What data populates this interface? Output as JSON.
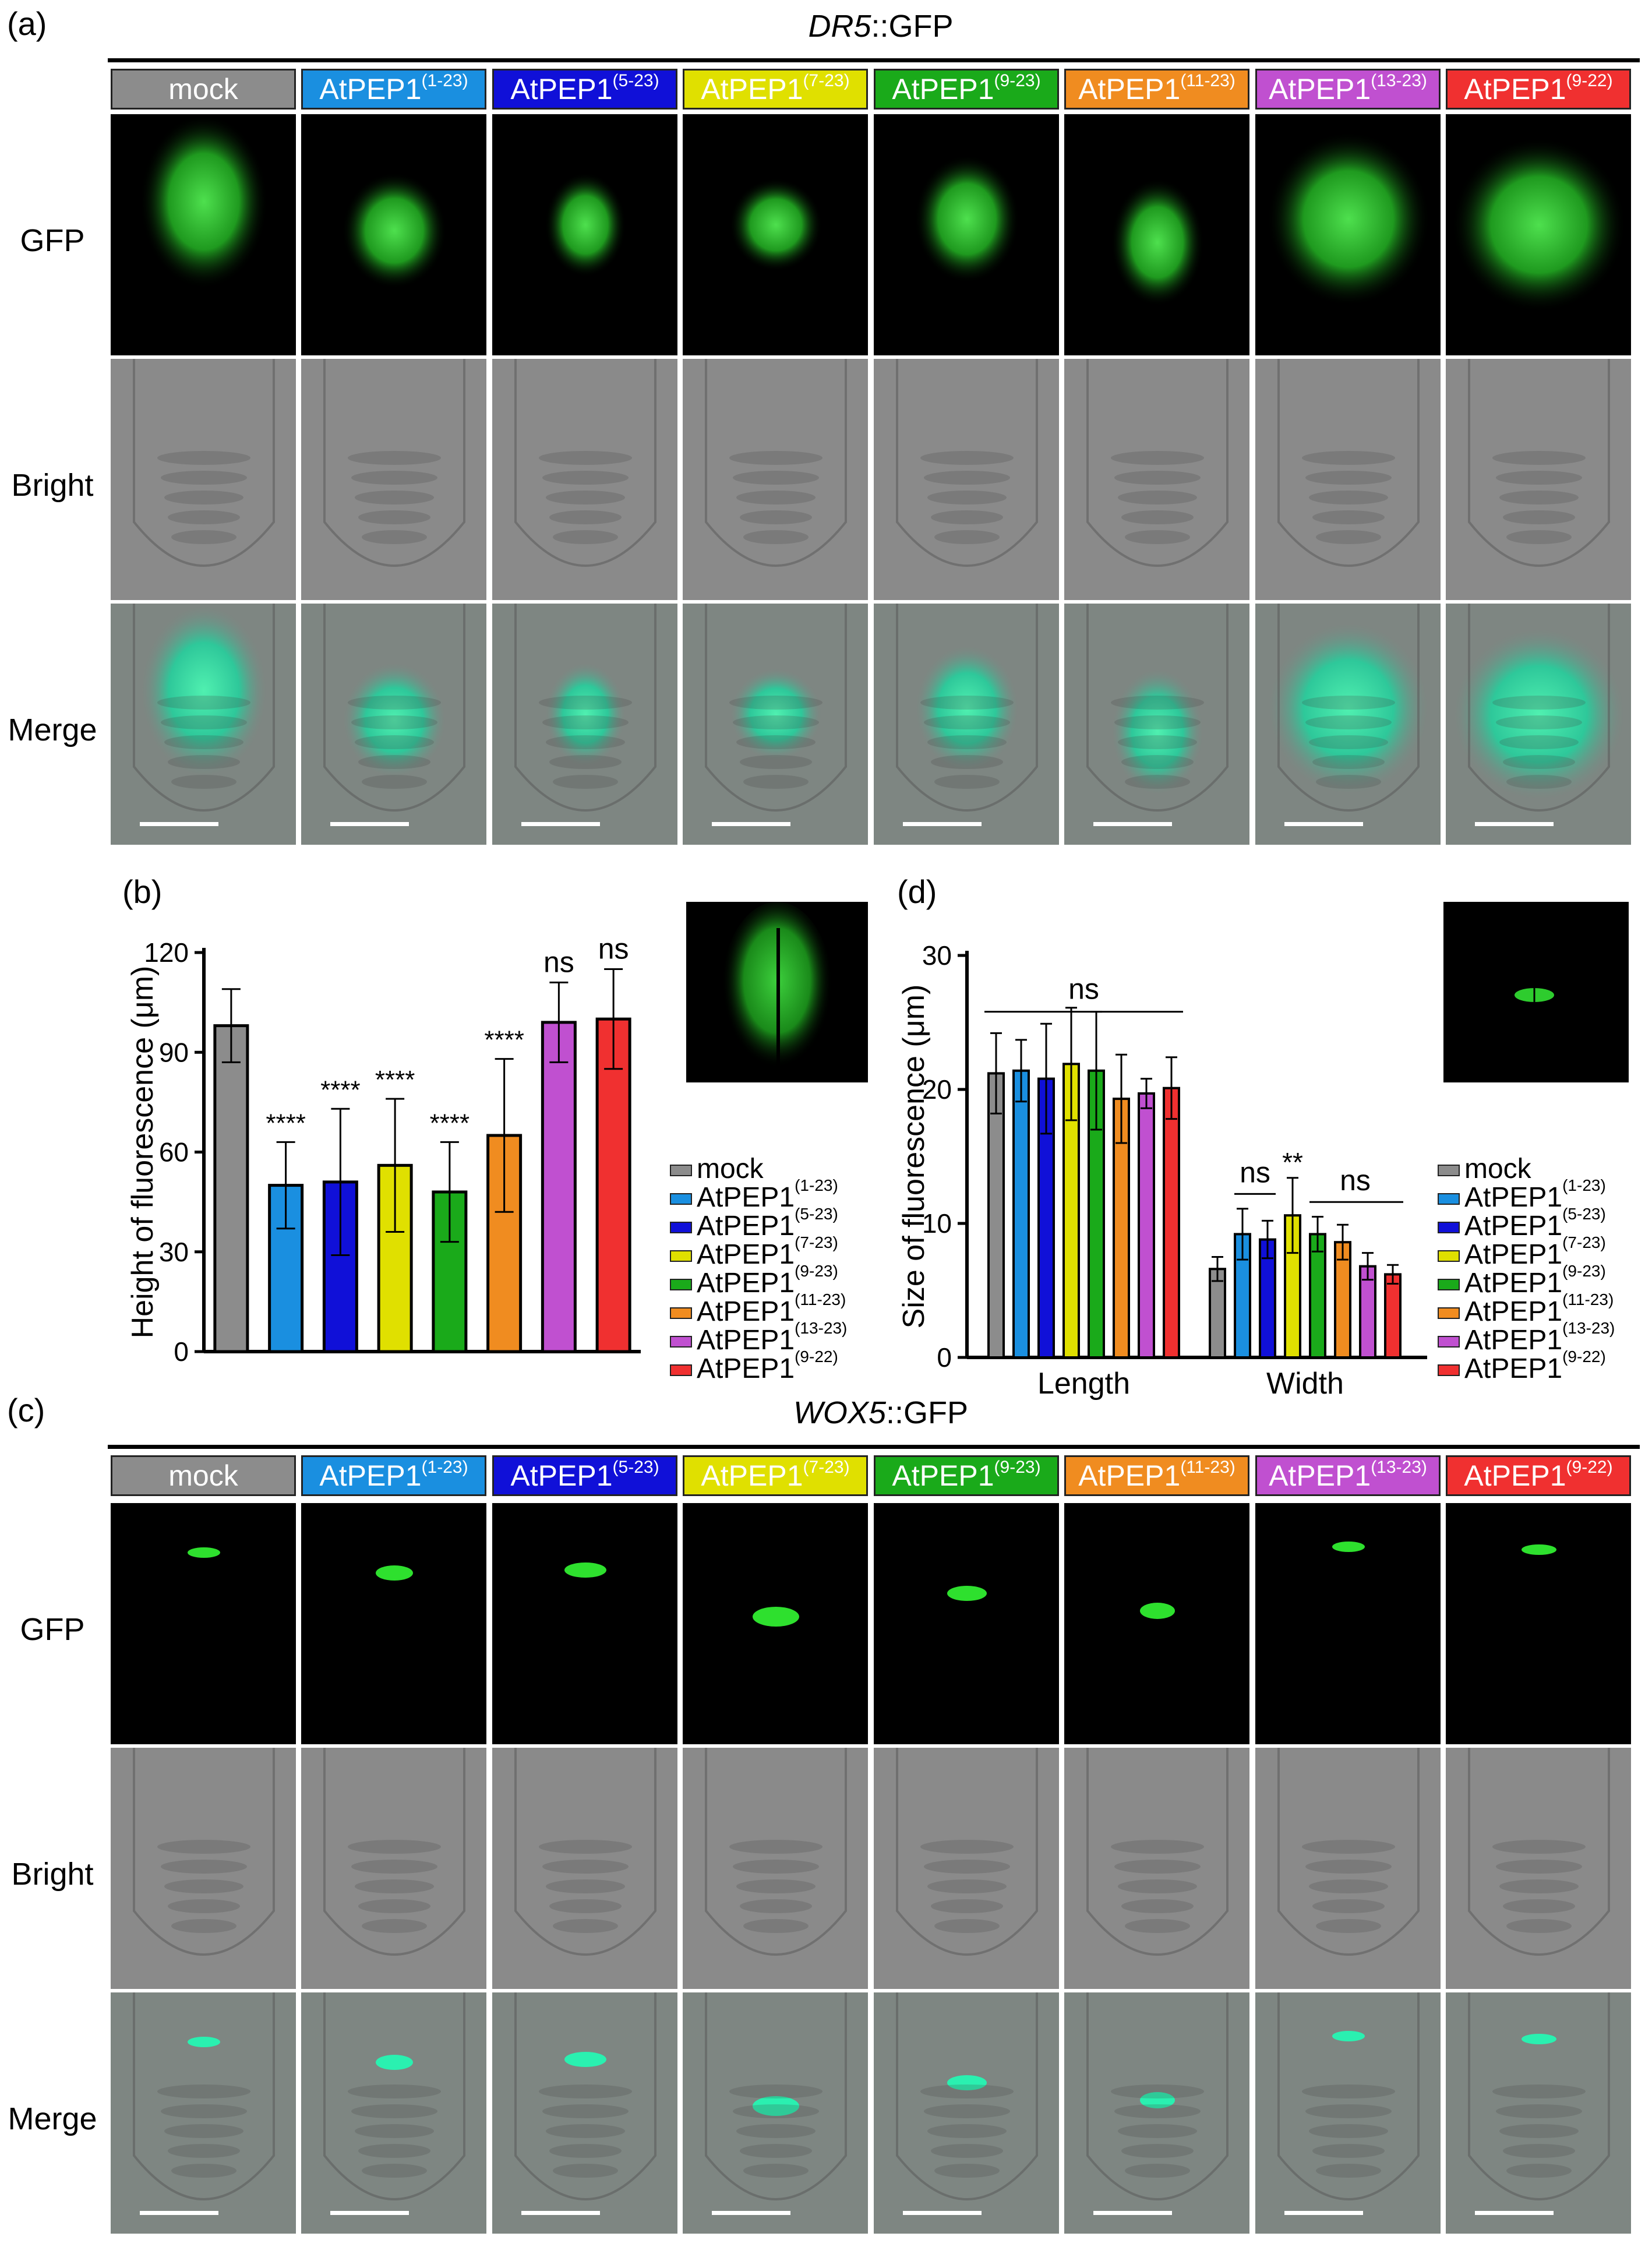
{
  "panels": {
    "a": {
      "label": "(a)",
      "title_italic": "DR5",
      "title_rest": "::GFP"
    },
    "b": {
      "label": "(b)"
    },
    "c": {
      "label": "(c)",
      "title_italic": "WOX5",
      "title_rest": "::GFP"
    },
    "d": {
      "label": "(d)"
    }
  },
  "treatments": [
    {
      "name": "mock",
      "sup": "",
      "color": "#8c8c8c",
      "text_color": "#ffffff"
    },
    {
      "name": "AtPEP1",
      "sup": "(1-23)",
      "color": "#1a8fe0",
      "text_color": "#ffffff"
    },
    {
      "name": "AtPEP1",
      "sup": "(5-23)",
      "color": "#1010d8",
      "text_color": "#ffffff"
    },
    {
      "name": "AtPEP1",
      "sup": "(7-23)",
      "color": "#e0e000",
      "text_color": "#ffffff"
    },
    {
      "name": "AtPEP1",
      "sup": "(9-23)",
      "color": "#1aaa1a",
      "text_color": "#ffffff"
    },
    {
      "name": "AtPEP1",
      "sup": "(11-23)",
      "color": "#f08c20",
      "text_color": "#ffffff"
    },
    {
      "name": "AtPEP1",
      "sup": "(13-23)",
      "color": "#c050d0",
      "text_color": "#ffffff"
    },
    {
      "name": "AtPEP1",
      "sup": "(9-22)",
      "color": "#f03030",
      "text_color": "#ffffff"
    }
  ],
  "row_labels": [
    "GFP",
    "Bright",
    "Merge"
  ],
  "chart_data": [
    {
      "panel": "b",
      "type": "bar",
      "ylabel": "Height of fluorescence (μm)",
      "ylim": [
        0,
        120
      ],
      "yticks": [
        "0",
        "30",
        "60",
        "90",
        "120"
      ],
      "series": [
        {
          "name": "mock",
          "value": 98,
          "err": 11,
          "sig": ""
        },
        {
          "name": "AtPEP1(1-23)",
          "value": 50,
          "err": 13,
          "sig": "****"
        },
        {
          "name": "AtPEP1(5-23)",
          "value": 51,
          "err": 22,
          "sig": "****"
        },
        {
          "name": "AtPEP1(7-23)",
          "value": 56,
          "err": 20,
          "sig": "****"
        },
        {
          "name": "AtPEP1(9-23)",
          "value": 48,
          "err": 15,
          "sig": "****"
        },
        {
          "name": "AtPEP1(11-23)",
          "value": 65,
          "err": 23,
          "sig": "****"
        },
        {
          "name": "AtPEP1(13-23)",
          "value": 99,
          "err": 12,
          "sig": "ns"
        },
        {
          "name": "AtPEP1(9-22)",
          "value": 100,
          "err": 15,
          "sig": "ns"
        }
      ]
    },
    {
      "panel": "d",
      "type": "bar",
      "ylabel": "Size of fluorescence (μm)",
      "ylim": [
        0,
        30
      ],
      "yticks": [
        "0",
        "10",
        "20",
        "30"
      ],
      "categories": [
        "Length",
        "Width"
      ],
      "groups": [
        {
          "category": "Length",
          "values": [
            21.2,
            21.4,
            20.8,
            21.9,
            21.4,
            19.3,
            19.7,
            20.1
          ],
          "errs": [
            3.0,
            2.3,
            4.1,
            4.2,
            4.4,
            3.3,
            1.1,
            2.3
          ]
        },
        {
          "category": "Width",
          "values": [
            6.6,
            9.2,
            8.8,
            10.6,
            9.2,
            8.6,
            6.8,
            6.2
          ],
          "errs": [
            0.9,
            1.9,
            1.4,
            2.8,
            1.3,
            1.3,
            1.0,
            0.7
          ]
        }
      ],
      "annotations": {
        "length_bracket": "ns",
        "width_left": "ns",
        "width_mid": "**",
        "width_right": "ns"
      }
    }
  ]
}
